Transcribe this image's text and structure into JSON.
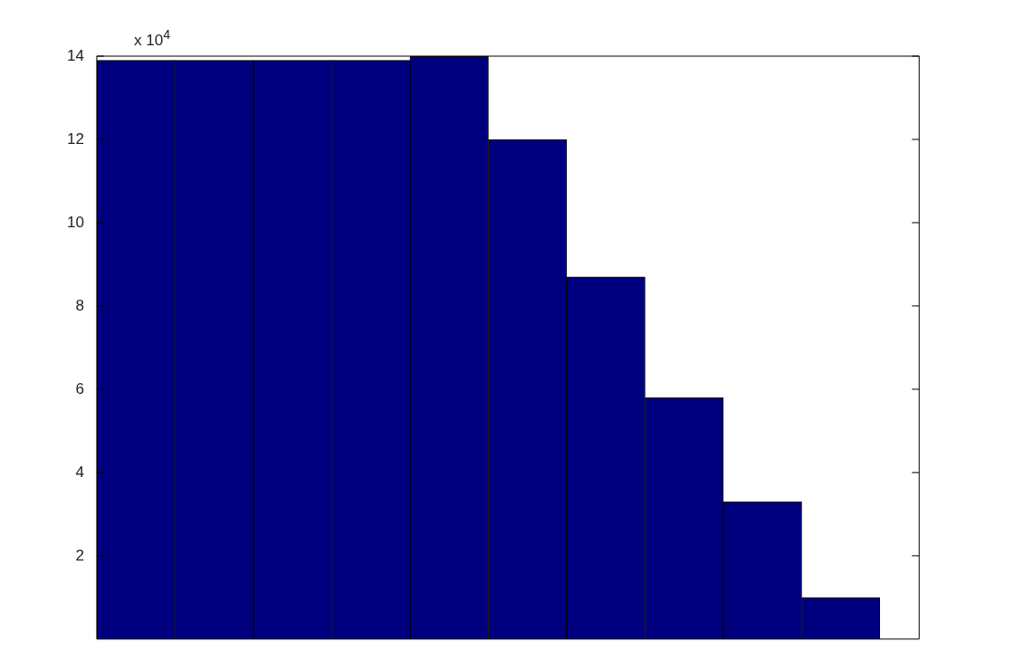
{
  "chart_data": {
    "type": "bar",
    "categories": [
      null,
      null,
      null,
      null,
      null,
      null,
      null,
      null,
      null,
      null
    ],
    "values": [
      13.9,
      13.9,
      13.9,
      13.9,
      14.0,
      12.0,
      8.7,
      5.8,
      3.3,
      1.0
    ],
    "color": "#00007f",
    "ylim": [
      0,
      14
    ],
    "yticks": [
      2,
      4,
      6,
      8,
      10,
      12,
      14
    ],
    "tick_labels": "y",
    "grid": false,
    "legend": false,
    "annotations": [
      "x 10$^{4}$"
    ]
  }
}
